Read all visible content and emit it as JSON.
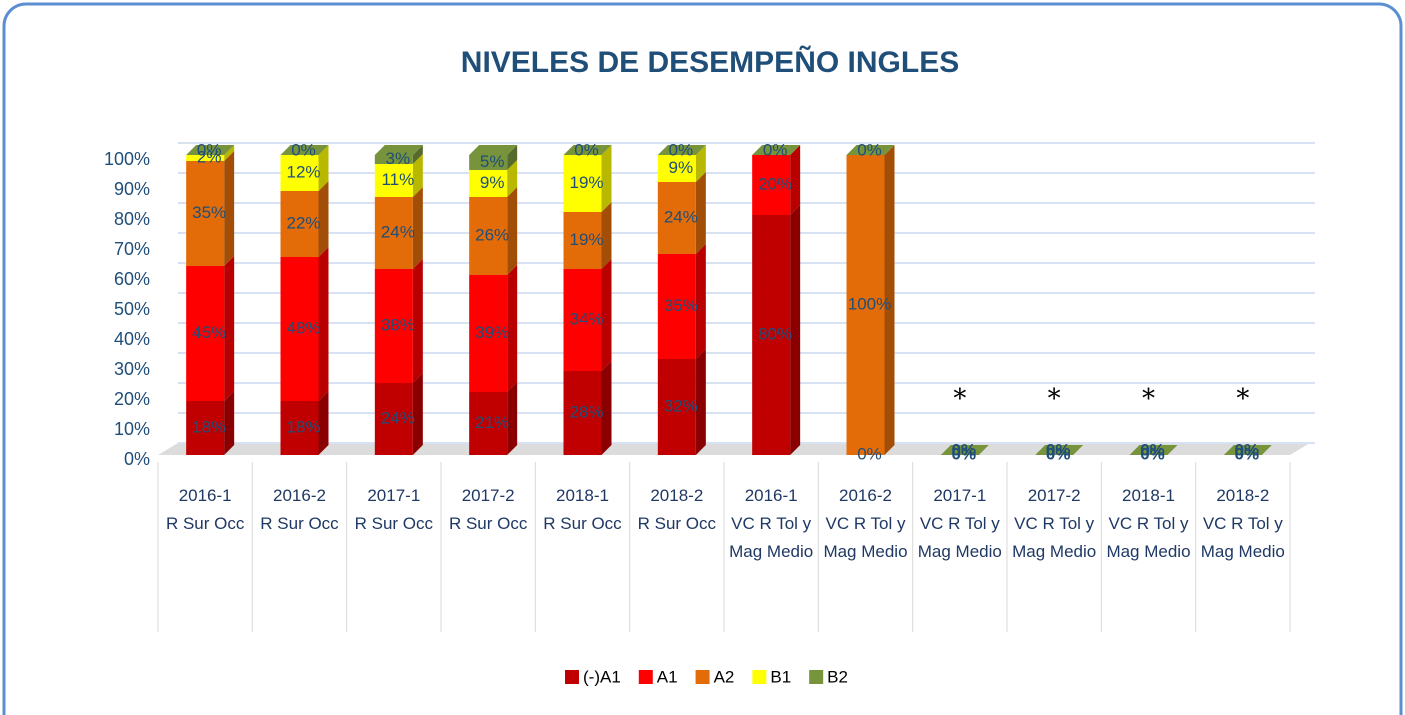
{
  "chart_data": {
    "type": "bar",
    "stacked": true,
    "title": "NIVELES DE DESEMPEÑO INGLES",
    "categories": [
      "2016-1",
      "2016-2",
      "2017-1",
      "2017-2",
      "2018-1",
      "2018-2",
      "2016-1",
      "2016-2",
      "2017-1",
      "2017-2",
      "2018-1",
      "2018-2"
    ],
    "groups": [
      "R Sur Occ",
      "R Sur Occ",
      "R Sur Occ",
      "R Sur Occ",
      "R Sur Occ",
      "R Sur Occ",
      "VC R Tol y Mag Medio",
      "VC R Tol y Mag Medio",
      "VC R Tol y Mag Medio",
      "VC R Tol y Mag Medio",
      "VC R Tol y Mag Medio",
      "VC R Tol y Mag Medio"
    ],
    "series": [
      {
        "name": "(-)A1",
        "color": "#c00000",
        "values": [
          18,
          18,
          24,
          21,
          28,
          32,
          80,
          0,
          0,
          0,
          0,
          0
        ],
        "value_labels": [
          "18%",
          "18%",
          "24%",
          "21%",
          "28%",
          "32%",
          "80%",
          "0%",
          "0%",
          "0%",
          "0%",
          "0%"
        ]
      },
      {
        "name": "A1",
        "color": "#ff0000",
        "values": [
          45,
          48,
          38,
          39,
          34,
          35,
          20,
          0,
          0,
          0,
          0,
          0
        ],
        "value_labels": [
          "45%",
          "48%",
          "38%",
          "39%",
          "34%",
          "35%",
          "20%",
          null,
          null,
          null,
          null,
          null
        ]
      },
      {
        "name": "A2",
        "color": "#e36c09",
        "values": [
          35,
          22,
          24,
          26,
          19,
          24,
          0,
          100,
          0,
          0,
          0,
          0
        ],
        "value_labels": [
          "35%",
          "22%",
          "24%",
          "26%",
          "19%",
          "24%",
          null,
          "100%",
          null,
          null,
          null,
          null
        ]
      },
      {
        "name": "B1",
        "color": "#ffff00",
        "values": [
          2,
          12,
          11,
          9,
          19,
          9,
          0,
          0,
          0,
          0,
          0,
          0
        ],
        "value_labels": [
          "2%",
          "12%",
          "11%",
          "9%",
          "19%",
          "9%",
          null,
          null,
          null,
          null,
          null,
          null
        ]
      },
      {
        "name": "B2",
        "color": "#77933c",
        "values": [
          0,
          0,
          3,
          5,
          0,
          0,
          0,
          0,
          0,
          0,
          0,
          0
        ],
        "value_labels": [
          "0%",
          "0%",
          "3%",
          "5%",
          "0%",
          "0%",
          "0%",
          "0%",
          "0%",
          "0%",
          "0%",
          "0%"
        ]
      }
    ],
    "annotations": [
      null,
      null,
      null,
      null,
      null,
      null,
      null,
      null,
      "*",
      "*",
      "*",
      "*"
    ],
    "ylim": [
      0,
      100
    ],
    "yticks": [
      {
        "value": 0,
        "label": "0%"
      },
      {
        "value": 10,
        "label": "10%"
      },
      {
        "value": 20,
        "label": "20%"
      },
      {
        "value": 30,
        "label": "30%"
      },
      {
        "value": 40,
        "label": "40%"
      },
      {
        "value": 50,
        "label": "50%"
      },
      {
        "value": 60,
        "label": "60%"
      },
      {
        "value": 70,
        "label": "70%"
      },
      {
        "value": 80,
        "label": "80%"
      },
      {
        "value": 90,
        "label": "90%"
      },
      {
        "value": 100,
        "label": "100%"
      }
    ],
    "grid": true,
    "legend": "bottom"
  }
}
